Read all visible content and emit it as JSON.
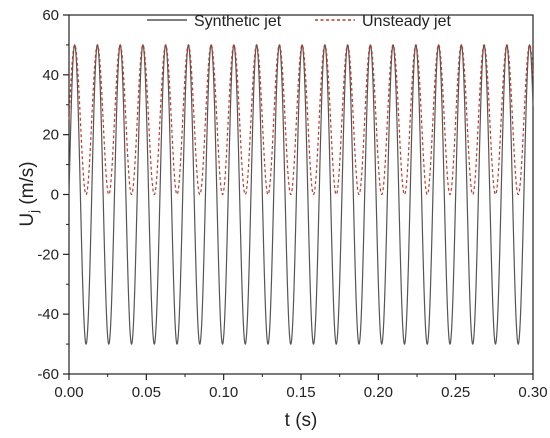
{
  "chart_data": {
    "type": "line",
    "xlabel": "t (s)",
    "ylabel_main": "U",
    "ylabel_sub": "j",
    "ylabel_unit": " (m/s)",
    "xlim": [
      0.0,
      0.3
    ],
    "ylim": [
      -60,
      60
    ],
    "x_ticks": [
      0.0,
      0.05,
      0.1,
      0.15,
      0.2,
      0.25,
      0.3
    ],
    "x_tick_labels": [
      "0.00",
      "0.05",
      "0.10",
      "0.15",
      "0.20",
      "0.25",
      "0.30"
    ],
    "y_ticks": [
      -60,
      -40,
      -20,
      0,
      20,
      40,
      60
    ],
    "y_tick_labels": [
      "-60",
      "-40",
      "-20",
      "0",
      "20",
      "40",
      "60"
    ],
    "grid": false,
    "legend_position": "top",
    "series": [
      {
        "name": "Synthetic jet",
        "color": "#555555",
        "dash": "solid",
        "function": "U = 50 sin(2*pi*f*t)",
        "amplitude": 50,
        "frequency_hz": 68
      },
      {
        "name": "Unsteady jet",
        "color": "#c0392b",
        "dash": "dashed",
        "function": "U = 25 + 25 sin(2*pi*f*t)",
        "amplitude": 25,
        "offset": 25,
        "frequency_hz": 68,
        "phase_rad": 0
      }
    ]
  }
}
